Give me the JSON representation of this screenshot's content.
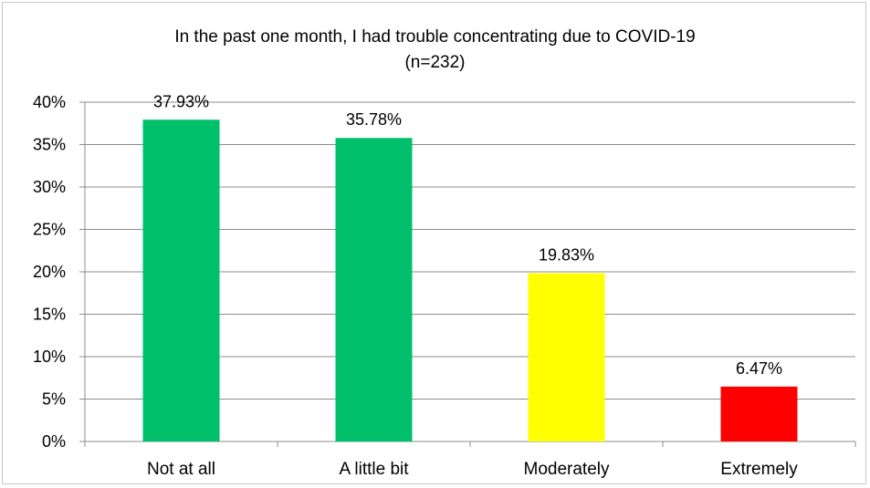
{
  "chart_data": {
    "type": "bar",
    "title": "In the past one month, I had trouble concentrating due to COVID-19",
    "subtitle": "(n=232)",
    "categories": [
      "Not at all",
      "A little bit",
      "Moderately",
      "Extremely"
    ],
    "values": [
      37.93,
      35.78,
      19.83,
      6.47
    ],
    "data_labels": [
      "37.93%",
      "35.78%",
      "19.83%",
      "6.47%"
    ],
    "colors": [
      "#00c06c",
      "#00c06c",
      "#ffff00",
      "#ff0000"
    ],
    "ylim": [
      0,
      40
    ],
    "yticks": [
      0,
      5,
      10,
      15,
      20,
      25,
      30,
      35,
      40
    ],
    "ytick_labels": [
      "0%",
      "5%",
      "10%",
      "15%",
      "20%",
      "25%",
      "30%",
      "35%",
      "40%"
    ],
    "grid": true,
    "gridline_color": "#8c8c8c",
    "xlabel": "",
    "ylabel": ""
  }
}
